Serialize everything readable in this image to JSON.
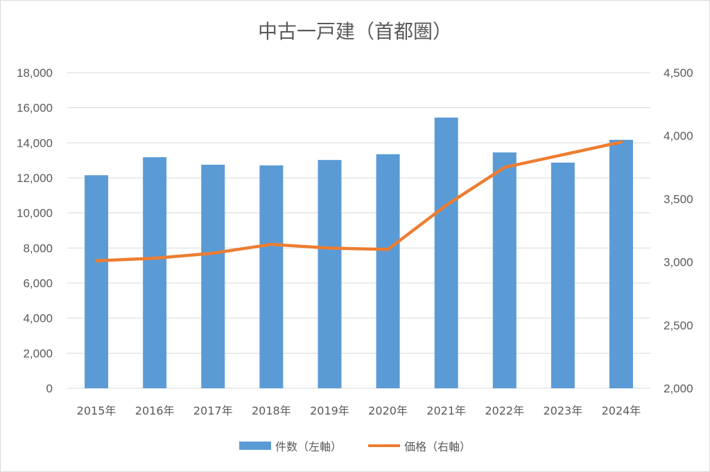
{
  "chart_data": {
    "type": "bar",
    "title": "中古一戸建（首都圏）",
    "categories": [
      "2015年",
      "2016年",
      "2017年",
      "2018年",
      "2019年",
      "2020年",
      "2021年",
      "2022年",
      "2023年",
      "2024年"
    ],
    "series": [
      {
        "name": "件数（左軸）",
        "type": "bar",
        "axis": "left",
        "color": "#5b9bd5",
        "values": [
          12150,
          13180,
          12750,
          12710,
          13020,
          13350,
          15440,
          13450,
          12870,
          14170
        ]
      },
      {
        "name": "価格（右軸）",
        "type": "line",
        "axis": "right",
        "color": "#ed7d31",
        "values": [
          3010,
          3030,
          3070,
          3140,
          3110,
          3100,
          3450,
          3750,
          3850,
          3950
        ]
      }
    ],
    "y_left": {
      "ylim": [
        0,
        18000
      ],
      "ticks": [
        "0",
        "2,000",
        "4,000",
        "6,000",
        "8,000",
        "10,000",
        "12,000",
        "14,000",
        "16,000",
        "18,000"
      ]
    },
    "y_right": {
      "ylim": [
        2000,
        4500
      ],
      "ticks": [
        "2,000",
        "2,500",
        "3,000",
        "3,500",
        "4,000",
        "4,500"
      ]
    },
    "grid": true,
    "legend_position": "bottom"
  }
}
